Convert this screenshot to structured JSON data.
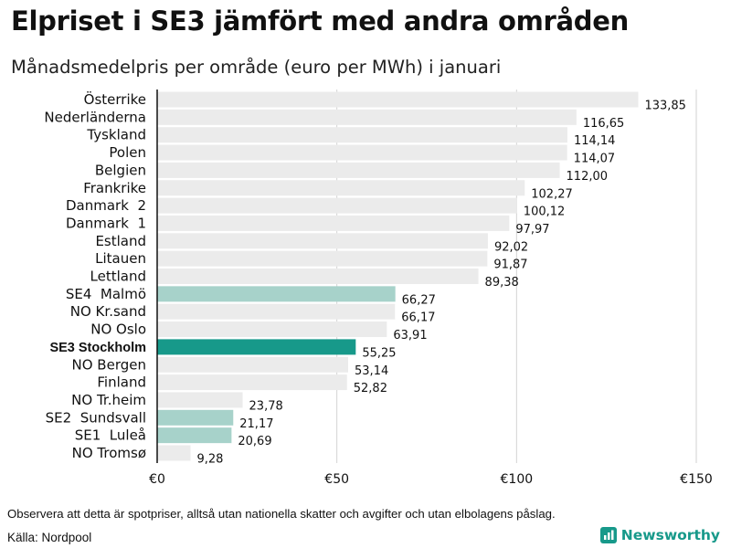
{
  "title": "Elpriset i SE3 jämfört med andra områden",
  "subtitle": "Månadsmedelpris per område (euro per MWh) i januari",
  "note": "Observera att detta är spotpriser, alltså utan nationella skatter och avgifter och utan elbolagens påslag.",
  "source": "Källa: Nordpool",
  "brand": {
    "name": "Newsworthy",
    "icon": "newsworthy-logo-icon"
  },
  "colors": {
    "bar_default": "#ebebeb",
    "bar_highlight_light": "#a7d2ca",
    "bar_highlight_strong": "#17998a",
    "axis_line": "#111111",
    "grid": "#d2d2d2",
    "brand": "#17998a"
  },
  "chart_data": {
    "type": "bar",
    "orientation": "horizontal",
    "title": "Elpriset i SE3 jämfört med andra områden",
    "xlabel": "",
    "ylabel": "",
    "xlim": [
      0,
      150
    ],
    "x_ticks": [
      0,
      50,
      100,
      150
    ],
    "x_tick_labels": [
      "€0",
      "€50",
      "€100",
      "€150"
    ],
    "grid": true,
    "categories": [
      "Österrike",
      "Nederländerna",
      "Tyskland",
      "Polen",
      "Belgien",
      "Frankrike",
      "Danmark  2",
      "Danmark  1",
      "Estland",
      "Litauen",
      "Lettland",
      "SE4  Malmö",
      "NO Kr.sand",
      "NO Oslo",
      "SE3 Stockholm",
      "NO Bergen",
      "Finland",
      "NO Tr.heim",
      "SE2  Sundsvall",
      "SE1  Luleå",
      "NO Tromsø"
    ],
    "values": [
      133.85,
      116.65,
      114.14,
      114.07,
      112.0,
      102.27,
      100.12,
      97.97,
      92.02,
      91.87,
      89.38,
      66.27,
      66.17,
      63.91,
      55.25,
      53.14,
      52.82,
      23.78,
      21.17,
      20.69,
      9.28
    ],
    "value_labels": [
      "133,85",
      "116,65",
      "114,14",
      "114,07",
      "112,00",
      "102,27",
      "100,12",
      "97,97",
      "92,02",
      "91,87",
      "89,38",
      "66,27",
      "66,17",
      "63,91",
      "55,25",
      "53,14",
      "52,82",
      "23,78",
      "21,17",
      "20,69",
      "9,28"
    ],
    "highlight": [
      "default",
      "default",
      "default",
      "default",
      "default",
      "default",
      "default",
      "default",
      "default",
      "default",
      "default",
      "light",
      "default",
      "default",
      "strong",
      "default",
      "default",
      "default",
      "light",
      "light",
      "default"
    ]
  }
}
